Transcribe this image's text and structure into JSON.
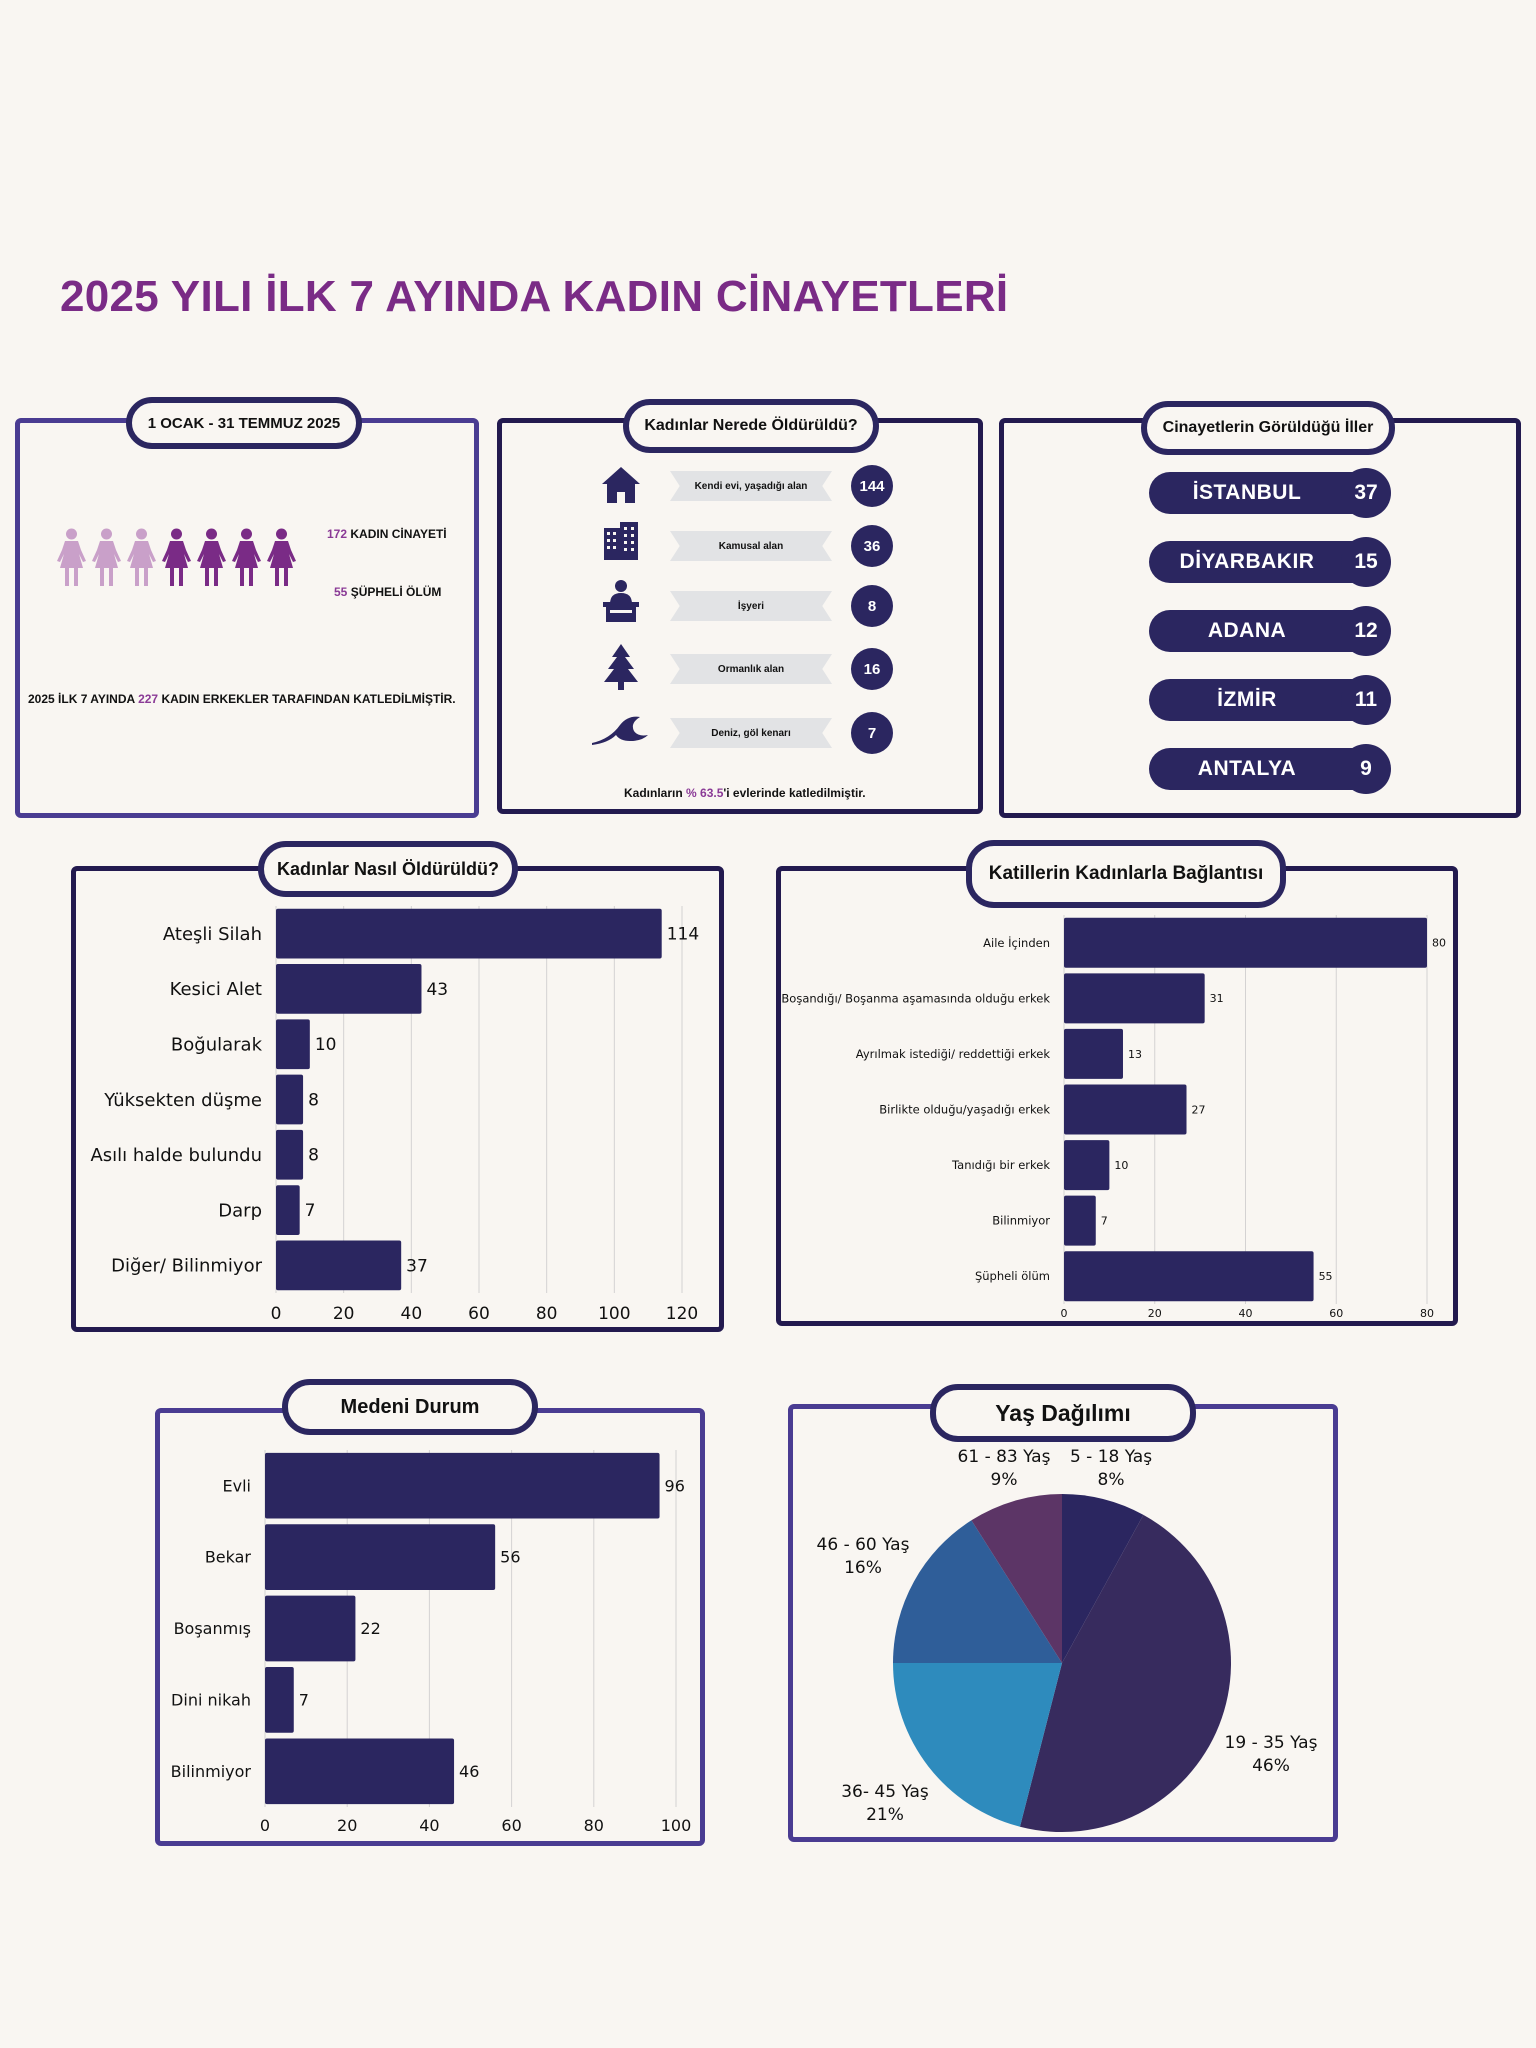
{
  "title": "2025 YILI İLK 7 AYINDA KADIN CİNAYETLERİ",
  "colors": {
    "accent": "#7a2b86",
    "navy": "#2b2660",
    "bar": "#2b2660",
    "light_figure": "#c9a0c9",
    "dark_figure": "#7a2b86"
  },
  "summary": {
    "period": "1 OCAK - 31 TEMMUZ  2025",
    "murders_count": "172",
    "murders_label": "KADIN CİNAYETİ",
    "suspicious_count": "55",
    "suspicious_label": "ŞÜPHELİ ÖLÜM",
    "footer_pre": "2025 İLK 7 AYINDA",
    "footer_num": "227",
    "footer_post": "KADIN ERKEKLER TARAFINDAN KATLEDİLMİŞTİR.",
    "figures": [
      "light",
      "light",
      "light",
      "dark",
      "dark",
      "dark",
      "dark"
    ]
  },
  "locations": {
    "title": "Kadınlar Nerede Öldürüldü?",
    "items": [
      {
        "label": "Kendi evi, yaşadığı alan",
        "count": "144",
        "icon": "house-icon"
      },
      {
        "label": "Kamusal alan",
        "count": "36",
        "icon": "building-icon"
      },
      {
        "label": "İşyeri",
        "count": "8",
        "icon": "office-worker-icon"
      },
      {
        "label": "Ormanlık alan",
        "count": "16",
        "icon": "tree-icon"
      },
      {
        "label": "Deniz, göl kenarı",
        "count": "7",
        "icon": "wave-icon"
      }
    ],
    "footer_pre": "Kadınların",
    "footer_pct": "% 63.5",
    "footer_post": "'i evlerinde katledilmiştir."
  },
  "cities": {
    "title": "Cinayetlerin Görüldüğü İller",
    "items": [
      {
        "name": "İSTANBUL",
        "count": "37"
      },
      {
        "name": "DİYARBAKIR",
        "count": "15"
      },
      {
        "name": "ADANA",
        "count": "12"
      },
      {
        "name": "İZMİR",
        "count": "11"
      },
      {
        "name": "ANTALYA",
        "count": "9"
      }
    ]
  },
  "methods_title": "Kadınlar Nasıl Öldürüldü?",
  "relation_title": "Katillerin Kadınlarla Bağlantısı",
  "marital_title": "Medeni Durum",
  "age_title": "Yaş Dağılımı",
  "chart_data": [
    {
      "id": "methods",
      "type": "bar",
      "orientation": "horizontal",
      "categories": [
        "Ateşli Silah",
        "Kesici Alet",
        "Boğularak",
        "Yüksekten düşme",
        "Asılı halde bulundu",
        "Darp",
        "Diğer/ Bilinmiyor"
      ],
      "values": [
        114,
        43,
        10,
        8,
        8,
        7,
        37
      ],
      "xlim": [
        0,
        120
      ],
      "ticks": [
        0,
        20,
        40,
        60,
        80,
        100,
        120
      ],
      "grid": true
    },
    {
      "id": "relation",
      "type": "bar",
      "orientation": "horizontal",
      "categories": [
        "Aile İçinden",
        "Boşandığı/ Boşanma aşamasında olduğu erkek",
        "Ayrılmak istediği/ reddettiği erkek",
        "Birlikte olduğu/yaşadığı erkek",
        "Tanıdığı bir erkek",
        "Bilinmiyor",
        "Şüpheli ölüm"
      ],
      "values": [
        80,
        31,
        13,
        27,
        10,
        7,
        55
      ],
      "xlim": [
        0,
        80
      ],
      "ticks": [
        0,
        20,
        40,
        60,
        80
      ],
      "grid": true
    },
    {
      "id": "marital",
      "type": "bar",
      "orientation": "horizontal",
      "categories": [
        "Evli",
        "Bekar",
        "Boşanmış",
        "Dini nikah",
        "Bilinmiyor"
      ],
      "values": [
        96,
        56,
        22,
        7,
        46
      ],
      "xlim": [
        0,
        100
      ],
      "ticks": [
        0,
        20,
        40,
        60,
        80,
        100
      ],
      "grid": true
    },
    {
      "id": "age",
      "type": "pie",
      "slices": [
        {
          "label": "5 - 18 Yaş",
          "pct_label": "8%",
          "value": 8,
          "color": "#2b2660"
        },
        {
          "label": "19 - 35 Yaş",
          "pct_label": "46%",
          "value": 46,
          "color": "#372b5e"
        },
        {
          "label": "36- 45 Yaş",
          "pct_label": "21%",
          "value": 21,
          "color": "#2e8bbd"
        },
        {
          "label": "46 - 60 Yaş",
          "pct_label": "16%",
          "value": 16,
          "color": "#2f5e99"
        },
        {
          "label": "61 - 83 Yaş",
          "pct_label": "9%",
          "value": 9,
          "color": "#5c3566"
        }
      ]
    }
  ]
}
